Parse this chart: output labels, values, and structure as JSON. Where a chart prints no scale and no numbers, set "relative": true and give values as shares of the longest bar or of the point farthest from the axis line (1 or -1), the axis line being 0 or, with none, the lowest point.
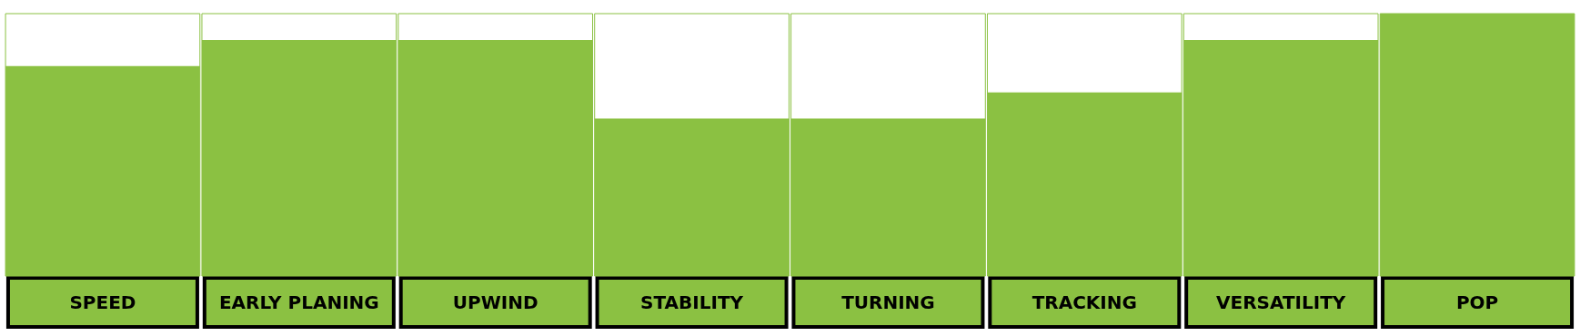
{
  "chart_data": {
    "type": "bar",
    "relative": true,
    "categories": [
      "SPEED",
      "EARLY PLANING",
      "UPWIND",
      "STABILITY",
      "TURNING",
      "TRACKING",
      "VERSATILITY",
      "POP"
    ],
    "values": [
      0.8,
      0.9,
      0.9,
      0.6,
      0.6,
      0.7,
      0.9,
      1
    ],
    "color": "#8bc142"
  }
}
